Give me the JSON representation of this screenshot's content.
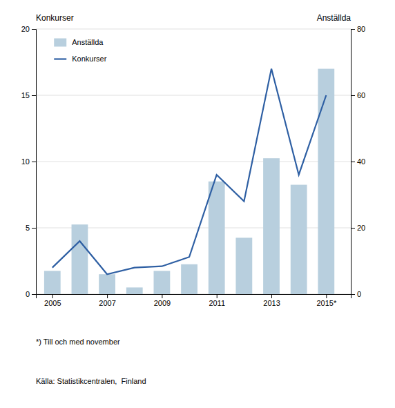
{
  "chart_data": {
    "type": "bar",
    "x": [
      2005,
      2006,
      2007,
      2008,
      2009,
      2010,
      2011,
      2012,
      2013,
      2014,
      2015
    ],
    "xlim": [
      2004.4,
      2015.9
    ],
    "xticks": [
      2005,
      2007,
      2009,
      2011,
      2013,
      {
        "value": 2015,
        "label": "2015*"
      }
    ],
    "ylim": [
      0,
      20
    ],
    "yticks": [
      0,
      5,
      10,
      15,
      20
    ],
    "y2lim": [
      0,
      80
    ],
    "y2ticks": [
      0,
      20,
      40,
      60,
      80
    ],
    "y_label": "Konkurser",
    "y2_label": "Anställda",
    "grid": true,
    "legend": "upper left",
    "series": [
      {
        "name": "Anställda",
        "type": "bar",
        "axis": "y2",
        "color": "#b8cfde",
        "values": [
          7,
          21,
          6,
          2,
          7,
          9,
          34,
          17,
          41,
          33,
          68
        ]
      },
      {
        "name": "Konkurser",
        "type": "line",
        "color": "#2e5fa3",
        "values": [
          2.0,
          4.0,
          1.5,
          2.0,
          2.1,
          2.8,
          9.0,
          7.0,
          17.0,
          9.0,
          15.0
        ]
      }
    ],
    "footnote": "*) Till och med november",
    "source": "Källa: Statistikcentralen,  Finland"
  }
}
